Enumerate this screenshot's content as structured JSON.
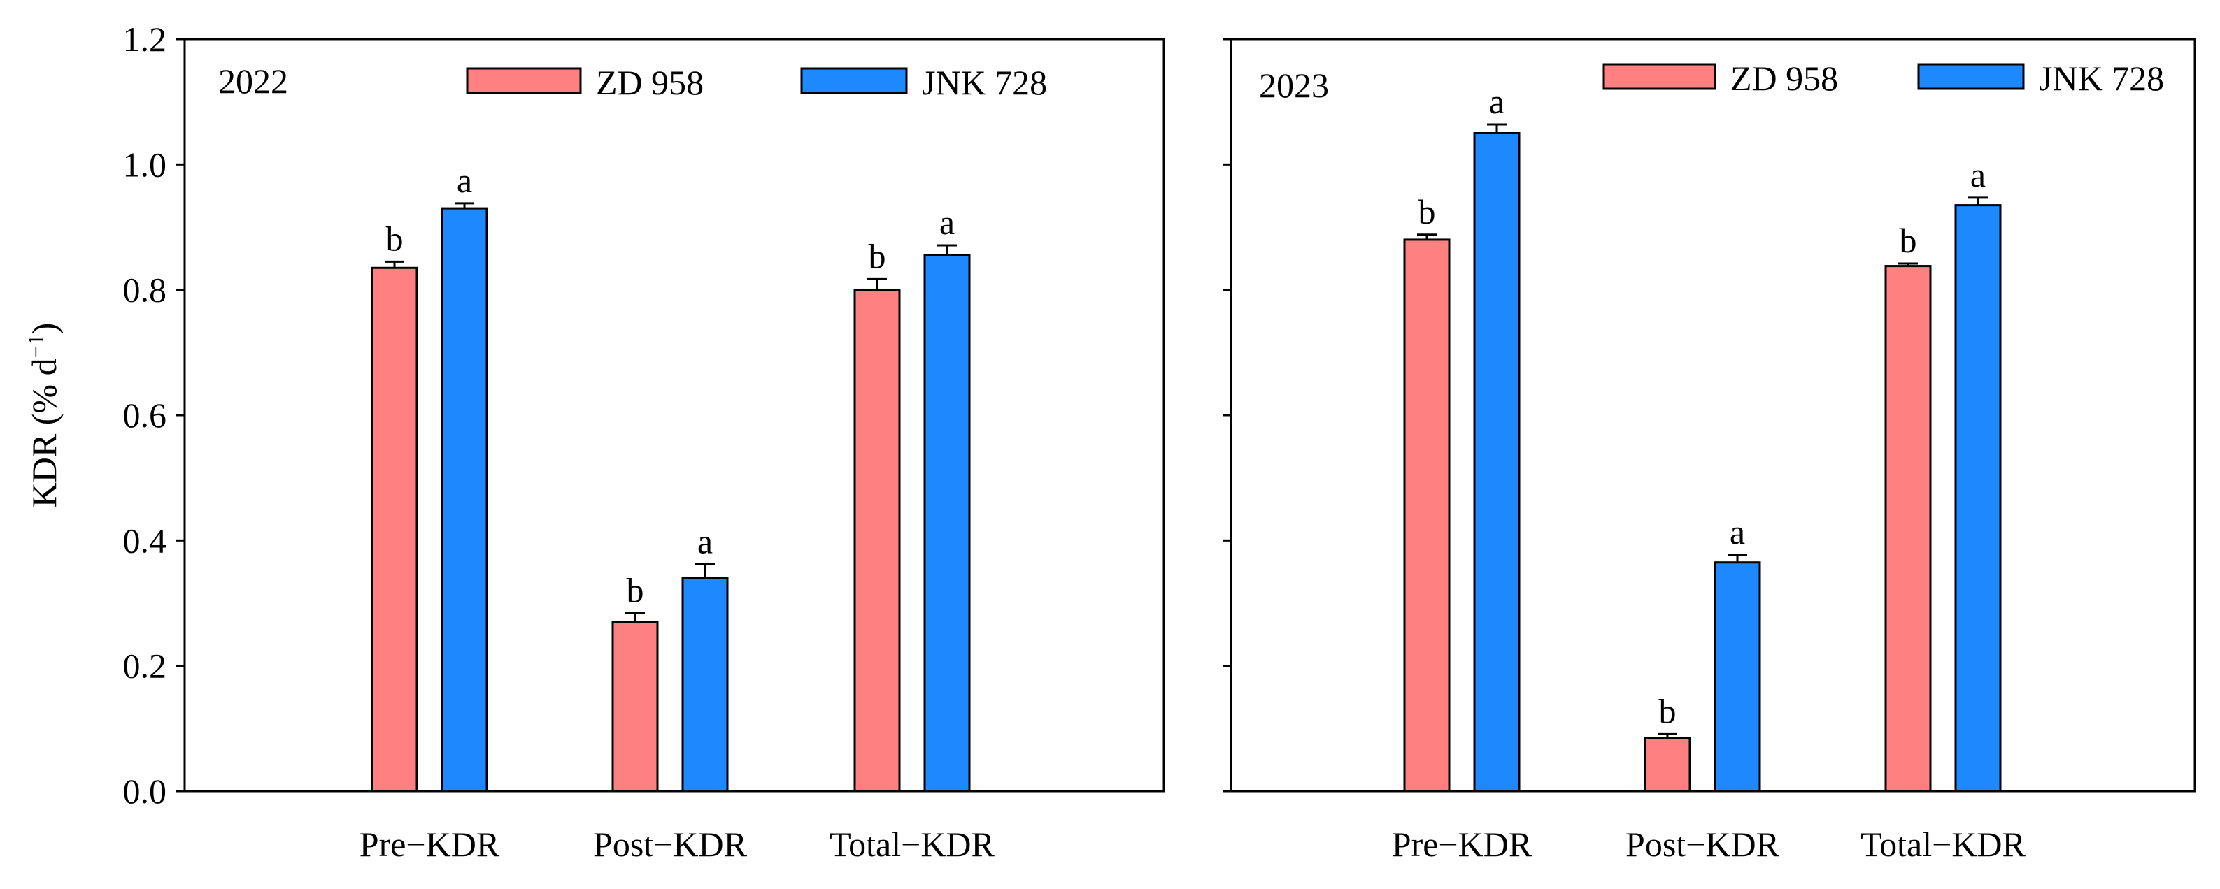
{
  "ylabel_main": "KDR",
  "ylabel_unit_prefix": "(% d",
  "ylabel_unit_exp": "−1",
  "ylabel_unit_suffix": ")",
  "chart_data": [
    {
      "type": "bar",
      "year_label": "2022",
      "categories": [
        "Pre−KDR",
        "Post−KDR",
        "Total−KDR"
      ],
      "ylim": [
        0,
        1.2
      ],
      "yticks": [
        "0.0",
        "0.2",
        "0.4",
        "0.6",
        "0.8",
        "1.0",
        "1.2"
      ],
      "legend_position": "top",
      "series": [
        {
          "name": "ZD 958",
          "color": "#FF8080",
          "values": [
            0.835,
            0.27,
            0.8
          ],
          "errors": [
            0.01,
            0.014,
            0.017
          ],
          "letters": [
            "b",
            "b",
            "b"
          ]
        },
        {
          "name": "JNK 728",
          "color": "#1E88FF",
          "values": [
            0.93,
            0.34,
            0.855
          ],
          "errors": [
            0.008,
            0.022,
            0.016
          ],
          "letters": [
            "a",
            "a",
            "a"
          ]
        }
      ]
    },
    {
      "type": "bar",
      "year_label": "2023",
      "categories": [
        "Pre−KDR",
        "Post−KDR",
        "Total−KDR"
      ],
      "ylim": [
        0,
        1.2
      ],
      "yticks": [
        "0.0",
        "0.2",
        "0.4",
        "0.6",
        "0.8",
        "1.0",
        "1.2"
      ],
      "legend_position": "top",
      "series": [
        {
          "name": "ZD 958",
          "color": "#FF8080",
          "values": [
            0.88,
            0.085,
            0.838
          ],
          "errors": [
            0.008,
            0.006,
            0.004
          ],
          "letters": [
            "b",
            "b",
            "b"
          ]
        },
        {
          "name": "JNK 728",
          "color": "#1E88FF",
          "values": [
            1.05,
            0.365,
            0.935
          ],
          "errors": [
            0.014,
            0.012,
            0.012
          ],
          "letters": [
            "a",
            "a",
            "a"
          ]
        }
      ]
    }
  ]
}
